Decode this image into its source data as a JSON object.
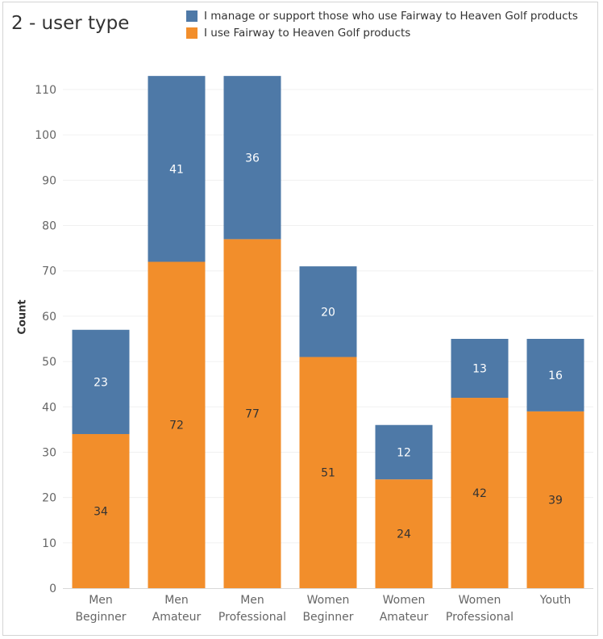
{
  "chart_data": {
    "type": "bar",
    "stacked": true,
    "title": "2 - user type",
    "xlabel": "",
    "ylabel": "Count",
    "ylim": [
      0,
      115
    ],
    "yticks": [
      0,
      10,
      20,
      30,
      40,
      50,
      60,
      70,
      80,
      90,
      100,
      110
    ],
    "grid": true,
    "legend_position": "top-right",
    "categories": [
      "Men\nBeginner",
      "Men\nAmateur",
      "Men\nProfessional",
      "Women\nBeginner",
      "Women\nAmateur",
      "Women\nProfessional",
      "Youth"
    ],
    "series": [
      {
        "name": "I use Fairway to Heaven Golf products",
        "color": "#f28e2b",
        "label_color": "#333333",
        "values": [
          34,
          72,
          77,
          51,
          24,
          42,
          39
        ]
      },
      {
        "name": "I manage or support those who use Fairway to Heaven Golf products",
        "color": "#4e79a7",
        "label_color": "#ffffff",
        "values": [
          23,
          41,
          36,
          20,
          12,
          13,
          16
        ]
      }
    ],
    "legend_order": [
      1,
      0
    ]
  }
}
